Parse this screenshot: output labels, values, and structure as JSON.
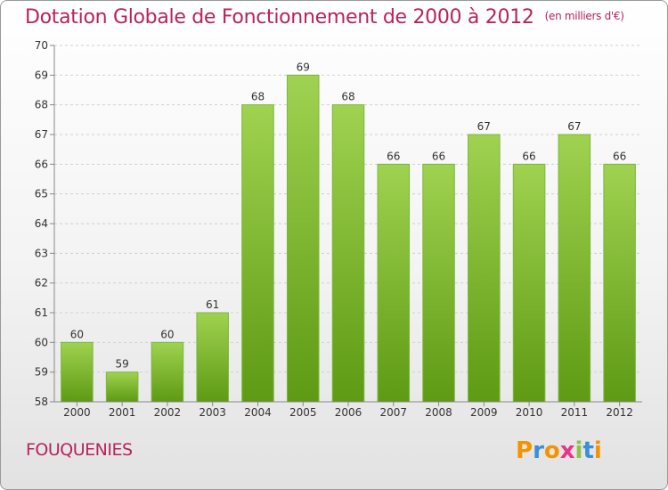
{
  "title": "Dotation Globale de Fonctionnement de 2000 à 2012",
  "unit_note": "(en milliers d'€)",
  "city": "FOUQUENIES",
  "logo": {
    "letters": [
      "P",
      "r",
      "o",
      "x",
      "i",
      "t",
      "i"
    ],
    "colors": [
      "#f29400",
      "#3a8fd6",
      "#f29400",
      "#e8348a",
      "#8bc34a",
      "#3a8fd6",
      "#f29400"
    ]
  },
  "colors": {
    "bar_top": "#9fd250",
    "bar_bottom": "#5e9a14",
    "title": "#b5245e"
  },
  "chart_data": {
    "type": "bar",
    "title": "Dotation Globale de Fonctionnement de 2000 à 2012",
    "subtitle": "(en milliers d'€)",
    "xlabel": "",
    "ylabel": "",
    "categories": [
      "2000",
      "2001",
      "2002",
      "2003",
      "2004",
      "2005",
      "2006",
      "2007",
      "2008",
      "2009",
      "2010",
      "2011",
      "2012"
    ],
    "values": [
      60,
      59,
      60,
      61,
      68,
      69,
      68,
      66,
      66,
      67,
      66,
      67,
      66
    ],
    "ylim": [
      58,
      70
    ],
    "yticks": [
      58,
      59,
      60,
      61,
      62,
      63,
      64,
      65,
      66,
      67,
      68,
      69,
      70
    ],
    "grid": true
  }
}
